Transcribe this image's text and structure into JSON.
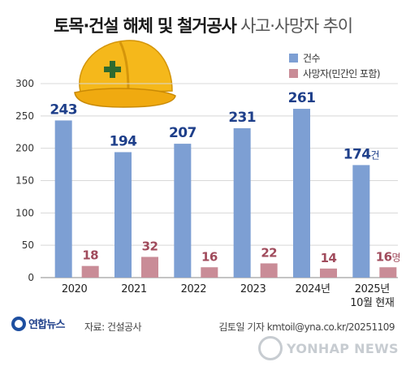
{
  "header": {
    "title_bold": "토목·건설 해체 및 철거공사",
    "title_light": "사고·사망자 추이"
  },
  "legend": [
    {
      "label": "건수",
      "color": "#7d9fd3"
    },
    {
      "label": "사망자(민간인 포함)",
      "color": "#c98c97"
    }
  ],
  "chart_data": {
    "type": "bar",
    "categories": [
      "2020",
      "2021",
      "2022",
      "2023",
      "2024년",
      "2025년"
    ],
    "category_sublabels": [
      "",
      "",
      "",
      "",
      "",
      "10월 현재"
    ],
    "series": [
      {
        "name": "건수",
        "values": [
          243,
          194,
          207,
          231,
          261,
          174
        ],
        "color": "#7d9fd3",
        "label_color": "#1e3f8a"
      },
      {
        "name": "사망자(민간인 포함)",
        "values": [
          18,
          32,
          16,
          22,
          14,
          16
        ],
        "color": "#c98c97",
        "label_color": "#a04b5c"
      }
    ],
    "last_label_units": [
      "건",
      "명"
    ],
    "ylim": [
      0,
      300
    ],
    "yticks": [
      0,
      50,
      100,
      150,
      200,
      250,
      300
    ],
    "grid": true
  },
  "footer": {
    "logo": "연합뉴스",
    "source": "자료: 건설공사",
    "credit": "김토일 기자 kmtoil@yna.co.kr/20251109",
    "watermark": "YONHAP NEWS"
  },
  "decoration": {
    "image": "hard-hat"
  }
}
